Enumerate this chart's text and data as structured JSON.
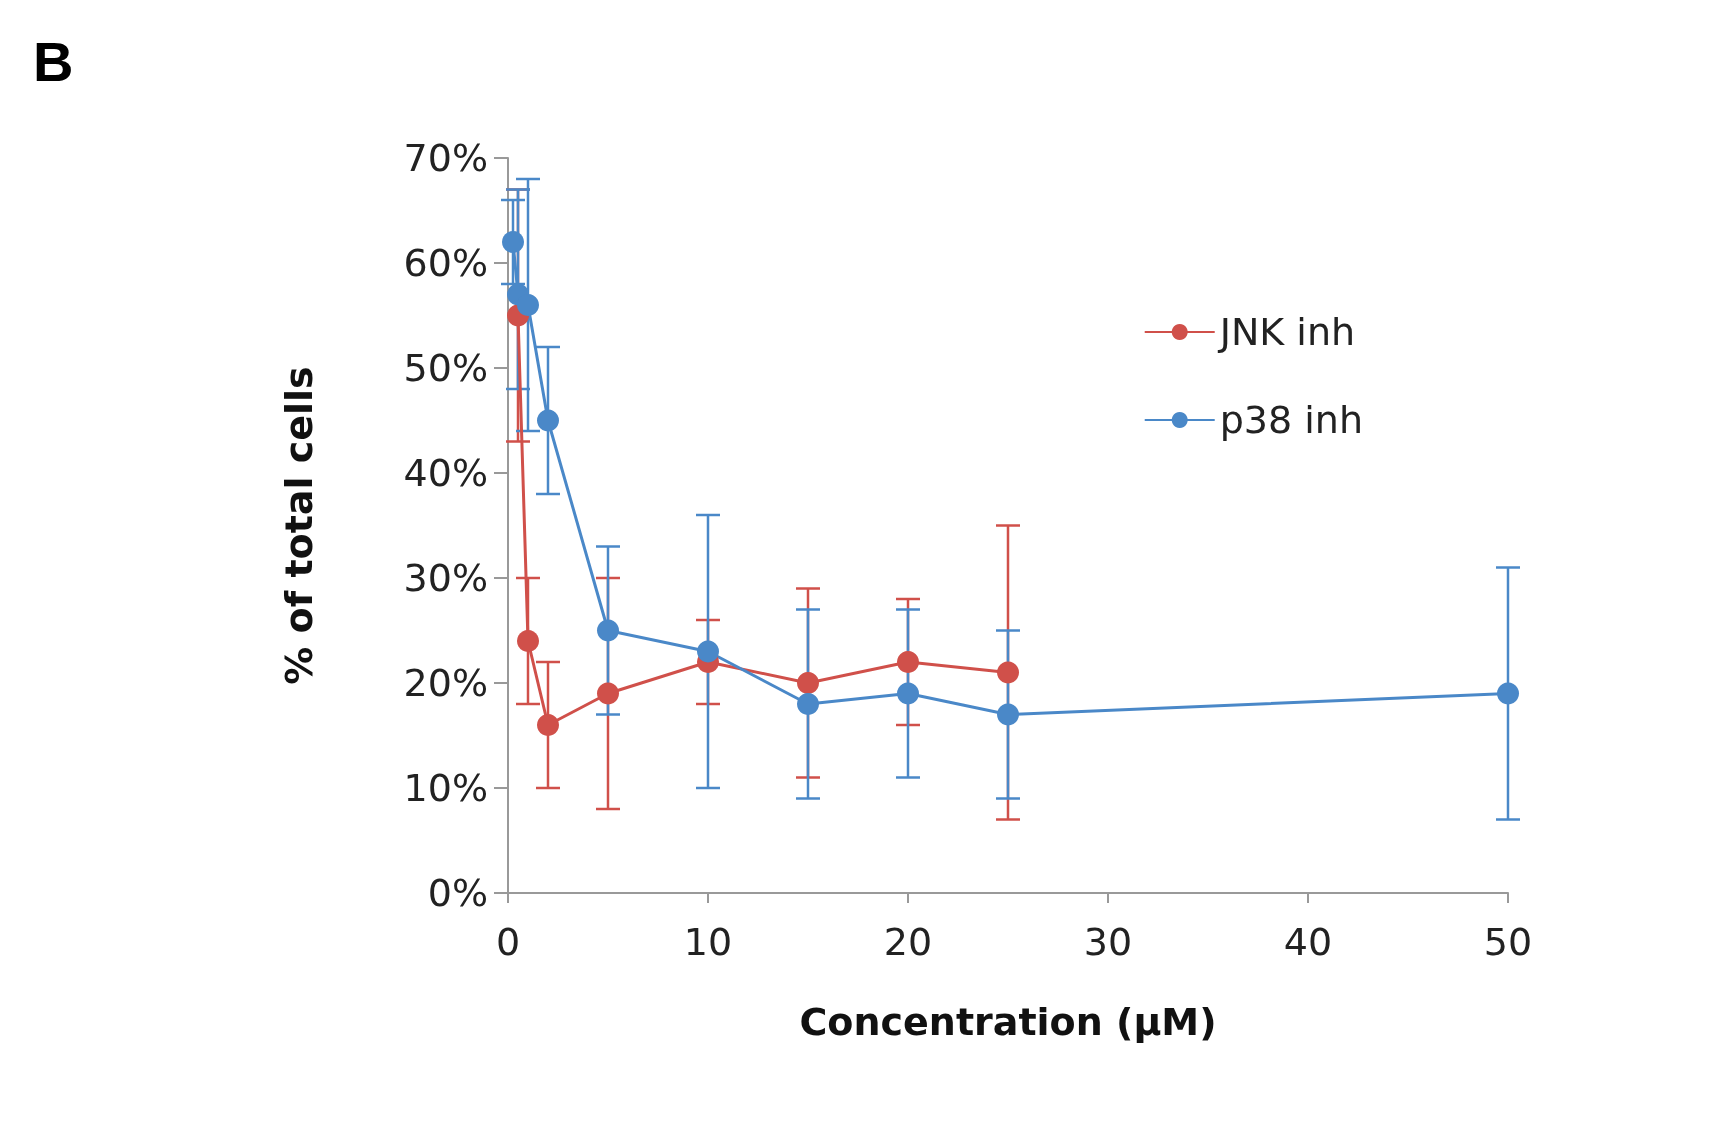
{
  "chart_data": {
    "type": "line",
    "title": "B",
    "xlabel": "Concentration (µM)",
    "ylabel": "% of total cells",
    "xlim": [
      0,
      50
    ],
    "xticks": [
      0,
      10,
      20,
      30,
      40,
      50
    ],
    "ylim": [
      0,
      70
    ],
    "yticks": [
      {
        "value": 0,
        "label": "0%"
      },
      {
        "value": 10,
        "label": "10%"
      },
      {
        "value": 20,
        "label": "20%"
      },
      {
        "value": 30,
        "label": "30%"
      },
      {
        "value": 40,
        "label": "40%"
      },
      {
        "value": 50,
        "label": "50%"
      },
      {
        "value": 60,
        "label": "60%"
      },
      {
        "value": 70,
        "label": "70%"
      }
    ],
    "grid": false,
    "legend": "top right",
    "marker": "circle",
    "line_style": "solid",
    "series": [
      {
        "name": "JNK inh",
        "color": "#d0504a",
        "x": [
          0.5,
          1,
          2,
          5,
          10,
          15,
          20,
          25
        ],
        "values": [
          55,
          24,
          16,
          19,
          22,
          20,
          22,
          21
        ],
        "errors": [
          [
            43,
            67
          ],
          [
            18,
            30
          ],
          [
            10,
            22
          ],
          [
            8,
            30
          ],
          [
            18,
            26
          ],
          [
            11,
            29
          ],
          [
            16,
            28
          ],
          [
            7,
            35
          ]
        ]
      },
      {
        "name": "p38 inh",
        "color": "#4a88c8",
        "x": [
          0.25,
          0.5,
          1,
          2,
          5,
          10,
          15,
          20,
          25,
          50
        ],
        "values": [
          62,
          57,
          56,
          45,
          25,
          23,
          18,
          19,
          17,
          19
        ],
        "errors": [
          [
            58,
            66
          ],
          [
            48,
            67
          ],
          [
            44,
            68
          ],
          [
            38,
            52
          ],
          [
            17,
            33
          ],
          [
            10,
            36
          ],
          [
            9,
            27
          ],
          [
            11,
            27
          ],
          [
            9,
            25
          ],
          [
            7,
            31
          ]
        ]
      }
    ]
  }
}
